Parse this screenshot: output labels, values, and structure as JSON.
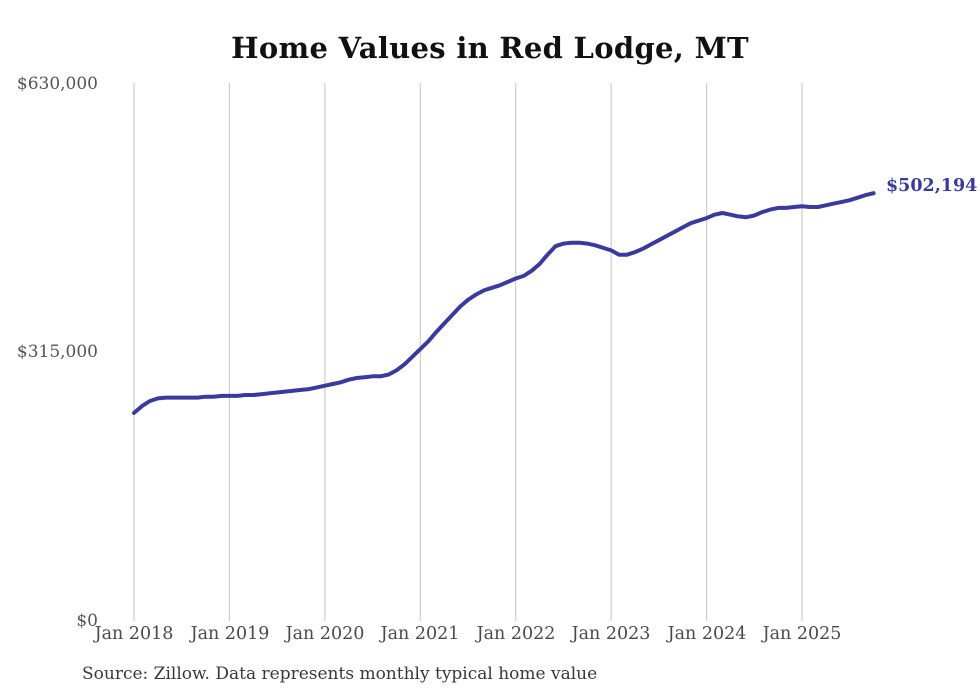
{
  "title": "Home Values in Red Lodge, MT",
  "end_label": "$502,194",
  "source_note": "Source: Zillow. Data represents monthly typical home value",
  "colors": {
    "line": "#3a3a9c",
    "gridline": "#cccccc",
    "title_text": "#111111",
    "axis_text": "#4a4a4a",
    "source_text": "#383838"
  },
  "chart_data": {
    "type": "line",
    "title": "Home Values in Red Lodge, MT",
    "xlabel": "",
    "ylabel": "",
    "ylim": [
      0,
      630000
    ],
    "grid": "vertical-only",
    "legend": "none",
    "y_tick_labels": [
      "$0",
      "$315,000",
      "$630,000"
    ],
    "y_tick_values": [
      0,
      315000,
      630000
    ],
    "x_tick_labels": [
      "Jan 2018",
      "Jan 2019",
      "Jan 2020",
      "Jan 2021",
      "Jan 2022",
      "Jan 2023",
      "Jan 2024",
      "Jan 2025"
    ],
    "final_value": 502194,
    "final_value_label": "$502,194",
    "series": [
      {
        "name": "Monthly typical home value",
        "x": [
          "2018-01",
          "2018-02",
          "2018-03",
          "2018-04",
          "2018-05",
          "2018-06",
          "2018-07",
          "2018-08",
          "2018-09",
          "2018-10",
          "2018-11",
          "2018-12",
          "2019-01",
          "2019-02",
          "2019-03",
          "2019-04",
          "2019-05",
          "2019-06",
          "2019-07",
          "2019-08",
          "2019-09",
          "2019-10",
          "2019-11",
          "2019-12",
          "2020-01",
          "2020-02",
          "2020-03",
          "2020-04",
          "2020-05",
          "2020-06",
          "2020-07",
          "2020-08",
          "2020-09",
          "2020-10",
          "2020-11",
          "2020-12",
          "2021-01",
          "2021-02",
          "2021-03",
          "2021-04",
          "2021-05",
          "2021-06",
          "2021-07",
          "2021-08",
          "2021-09",
          "2021-10",
          "2021-11",
          "2021-12",
          "2022-01",
          "2022-02",
          "2022-03",
          "2022-04",
          "2022-05",
          "2022-06",
          "2022-07",
          "2022-08",
          "2022-09",
          "2022-10",
          "2022-11",
          "2022-12",
          "2023-01",
          "2023-02",
          "2023-03",
          "2023-04",
          "2023-05",
          "2023-06",
          "2023-07",
          "2023-08",
          "2023-09",
          "2023-10",
          "2023-11",
          "2023-12",
          "2024-01",
          "2024-02",
          "2024-03",
          "2024-04",
          "2024-05",
          "2024-06",
          "2024-07",
          "2024-08",
          "2024-09",
          "2024-10",
          "2024-11",
          "2024-12",
          "2025-01",
          "2025-02",
          "2025-03",
          "2025-04",
          "2025-05",
          "2025-06",
          "2025-07",
          "2025-08",
          "2025-09",
          "2025-10"
        ],
        "values": [
          244000,
          252000,
          258000,
          261000,
          262000,
          262000,
          262000,
          262000,
          262000,
          263000,
          263000,
          264000,
          264000,
          264000,
          265000,
          265000,
          266000,
          267000,
          268000,
          269000,
          270000,
          271000,
          272000,
          274000,
          276000,
          278000,
          280000,
          283000,
          285000,
          286000,
          287000,
          287000,
          289000,
          294000,
          301000,
          310000,
          319000,
          328000,
          339000,
          349000,
          359000,
          369000,
          377000,
          383000,
          388000,
          391000,
          394000,
          398000,
          402000,
          405000,
          411000,
          419000,
          430000,
          440000,
          443000,
          444000,
          444000,
          443000,
          441000,
          438000,
          435000,
          430000,
          430000,
          433000,
          437000,
          442000,
          447000,
          452000,
          457000,
          462000,
          467000,
          470000,
          473000,
          477000,
          479000,
          477000,
          475000,
          474000,
          476000,
          480000,
          483000,
          485000,
          485000,
          486000,
          487000,
          486000,
          486000,
          488000,
          490000,
          492000,
          494000,
          497000,
          500000,
          502194
        ]
      }
    ]
  }
}
